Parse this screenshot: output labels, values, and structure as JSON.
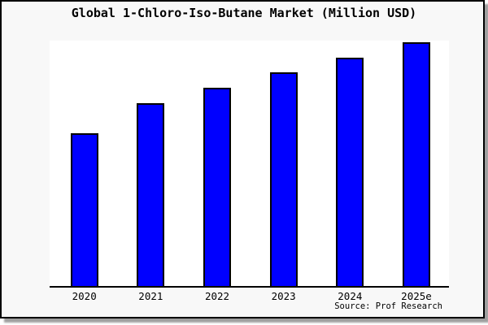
{
  "chart": {
    "title": "Global 1-Chloro-Iso-Butane Market (Million USD)",
    "source": "Source: Prof Research"
  },
  "chart_data": {
    "type": "bar",
    "title": "Global 1-Chloro-Iso-Butane Market (Million USD)",
    "categories": [
      "2020",
      "2021",
      "2022",
      "2023",
      "2024",
      "2025e"
    ],
    "values": [
      100,
      120,
      130,
      140,
      150,
      160
    ],
    "xlabel": "",
    "ylabel": "",
    "ylim": [
      0,
      160
    ],
    "y_axis_shown": false,
    "grid": false,
    "legend": false,
    "bar_color": "#0000ff",
    "bar_edge_color": "#000000",
    "plot_bg": "#ffffff",
    "card_bg": "#f8f8f8",
    "frame_color": "#000000",
    "source": "Source: Prof Research"
  }
}
